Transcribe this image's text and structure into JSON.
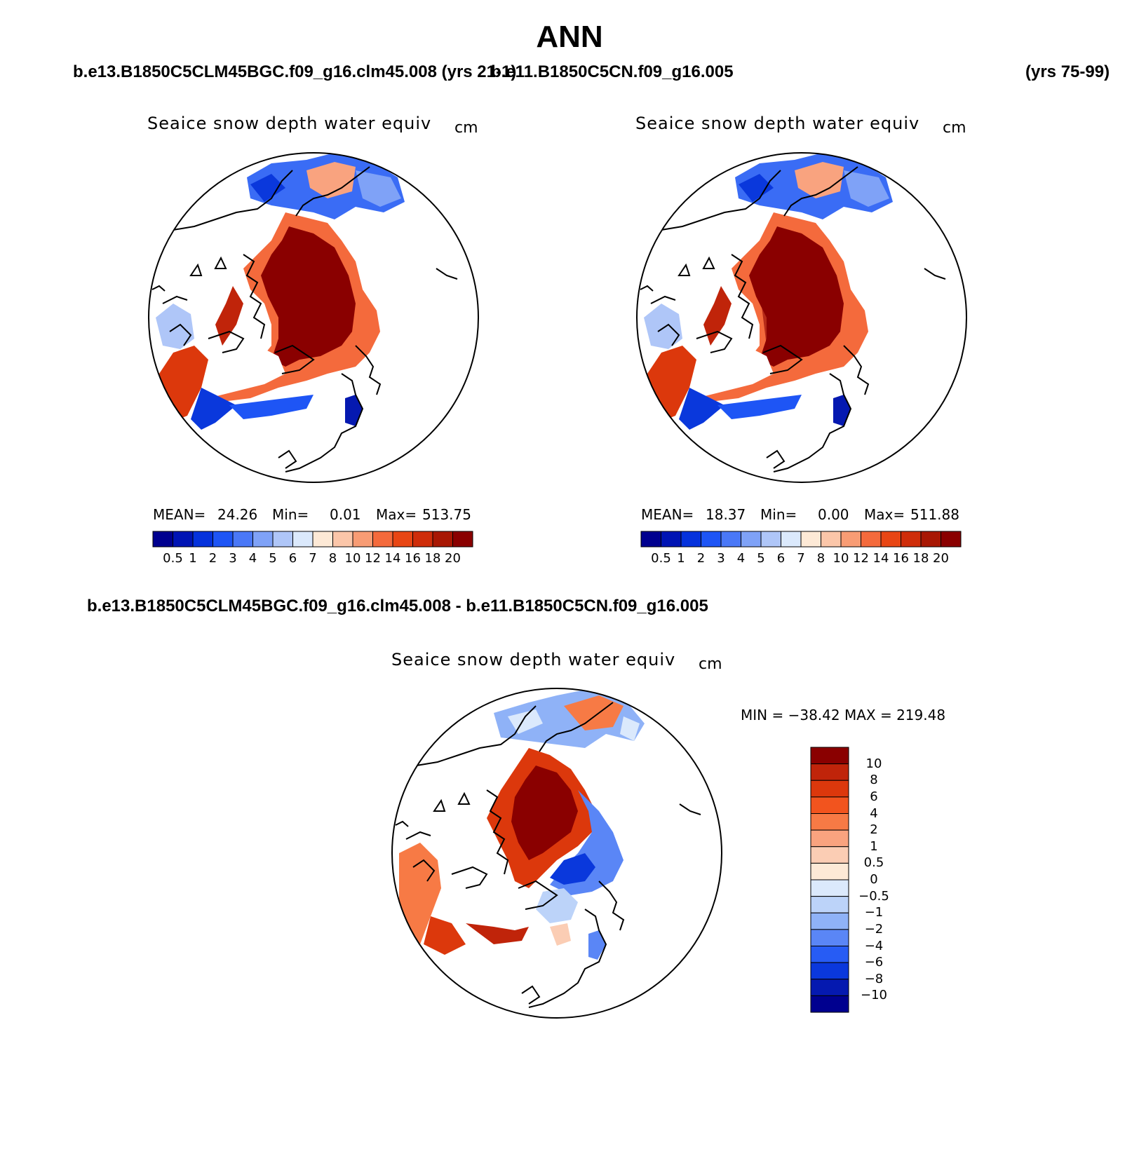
{
  "header": {
    "title": "ANN",
    "case1_label": "b.e13.B1850C5CLM45BGC.f09_g16.clm45.008 (yrs 21-1)",
    "case2_label": "b.e11.B1850C5CN.f09_g16.005",
    "case2_years": "(yrs 75-99)",
    "diff_label": "b.e13.B1850C5CLM45BGC.f09_g16.clm45.008 - b.e11.B1850C5CN.f09_g16.005"
  },
  "panels": [
    {
      "variable": "Seaice snow depth water equiv",
      "units": "cm",
      "mean_label": "MEAN=",
      "mean": "24.26",
      "min_label": "Min=",
      "min": "0.01",
      "max_label": "Max=",
      "max": "513.75"
    },
    {
      "variable": "Seaice snow depth water equiv",
      "units": "cm",
      "mean_label": "MEAN=",
      "mean": "18.37",
      "min_label": "Min=",
      "min": "0.00",
      "max_label": "Max=",
      "max": "511.88"
    }
  ],
  "diff_panel": {
    "variable": "Seaice snow depth water equiv",
    "units": "cm",
    "minmax_text": "MIN = −38.42 MAX = 219.48"
  },
  "abs_colorbar": {
    "labels": [
      "0.5",
      "1",
      "2",
      "3",
      "4",
      "5",
      "6",
      "7",
      "8",
      "10",
      "12",
      "14",
      "16",
      "18",
      "20"
    ],
    "colors": [
      "#00008f",
      "#0014b4",
      "#0532dc",
      "#1e55f5",
      "#4a78f7",
      "#7fa2f7",
      "#afc6f8",
      "#dbe9fc",
      "#fde9d6",
      "#fbc6a9",
      "#f89c74",
      "#f46a3c",
      "#e84614",
      "#cf2d0a",
      "#a81703",
      "#8a0000"
    ]
  },
  "diff_colorbar": {
    "labels": [
      "10",
      "8",
      "6",
      "4",
      "2",
      "1",
      "0.5",
      "0",
      "−0.5",
      "−1",
      "−2",
      "−4",
      "−6",
      "−8",
      "−10"
    ],
    "colors": [
      "#8a0000",
      "#c0240a",
      "#dc380c",
      "#f2541e",
      "#f77a45",
      "#f9a37f",
      "#fbcdb4",
      "#fde9d6",
      "#dbe9fc",
      "#bcd3f9",
      "#8fb2f7",
      "#5a86f6",
      "#275cf4",
      "#0a38dc",
      "#0519b0",
      "#00008f"
    ]
  }
}
